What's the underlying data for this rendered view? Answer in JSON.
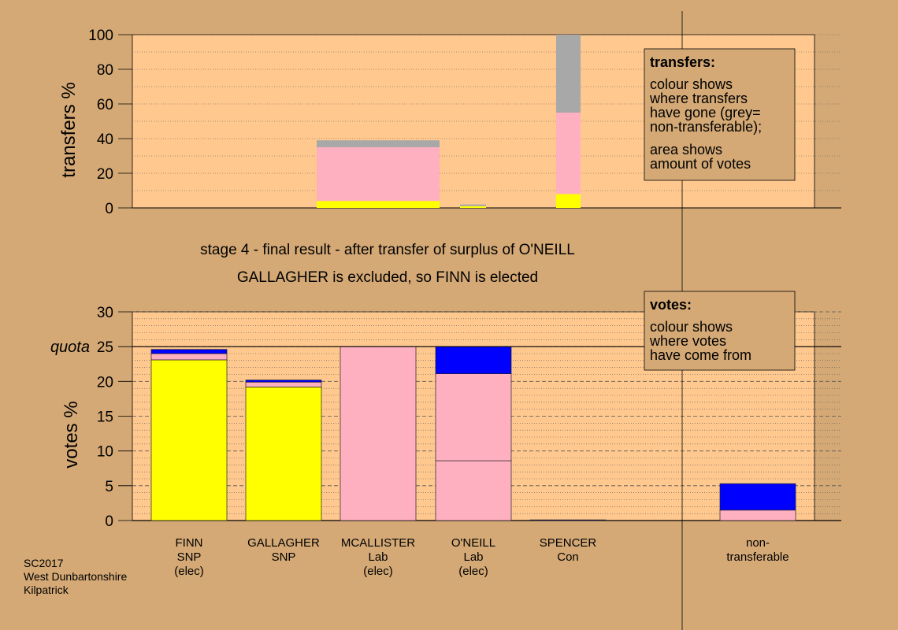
{
  "colors": {
    "background": "#d4a976",
    "plot_area": "#ffc88f",
    "snp": "#ffff00",
    "lab": "#ffb0c0",
    "con": "#0000ff",
    "non_transferable": "#a8a8a8",
    "legend_box": "#d4a976"
  },
  "headings": {
    "stage": "stage 4 - final result - after transfer of surplus of O'NEILL",
    "outcome": "GALLAGHER is excluded, so FINN is elected"
  },
  "transfers_legend": {
    "title": "transfers:",
    "lines": [
      "colour shows",
      "where transfers",
      "have gone (grey=",
      "non-transferable);"
    ],
    "lines2": [
      "area shows",
      "amount of votes"
    ]
  },
  "votes_legend": {
    "title": "votes:",
    "lines": [
      "colour shows",
      "where votes",
      "have come from"
    ]
  },
  "footer": [
    "SC2017",
    "West Dunbartonshire",
    "Kilpatrick"
  ],
  "chart_data": [
    {
      "type": "bar",
      "stacked": true,
      "ylabel": "transfers %",
      "ylim": [
        0,
        100
      ],
      "yticks": [
        0,
        20,
        40,
        60,
        80,
        100
      ],
      "grid": "dotted every 10",
      "legend_position": "top-right",
      "bars": [
        {
          "id": "mcallister",
          "segments": [
            {
              "color": "snp",
              "value": 4
            },
            {
              "color": "lab",
              "value": 31
            },
            {
              "color": "non_transferable",
              "value": 4
            }
          ]
        },
        {
          "id": "oneill",
          "segments": [
            {
              "color": "snp",
              "value": 1
            },
            {
              "color": "non_transferable",
              "value": 1
            }
          ]
        },
        {
          "id": "spencer",
          "segments": [
            {
              "color": "snp",
              "value": 8
            },
            {
              "color": "lab",
              "value": 47
            },
            {
              "color": "non_transferable",
              "value": 45
            }
          ]
        }
      ]
    },
    {
      "type": "bar",
      "stacked": true,
      "ylabel": "votes %",
      "ylim": [
        0,
        30
      ],
      "yticks": [
        0,
        5,
        10,
        15,
        20,
        25,
        30
      ],
      "quota": 25,
      "quota_label": "quota",
      "grid": "dashed every 5, dotted every 1",
      "legend_position": "top-right",
      "categories": [
        {
          "lines": [
            "FINN",
            "SNP",
            "(elec)"
          ],
          "segments": [
            {
              "color": "snp",
              "value": 23.1
            },
            {
              "color": "lab",
              "value": 0.9
            },
            {
              "color": "con",
              "value": 0.6
            }
          ]
        },
        {
          "lines": [
            "GALLAGHER",
            "SNP"
          ],
          "segments": [
            {
              "color": "snp",
              "value": 19.2
            },
            {
              "color": "lab",
              "value": 0.7
            },
            {
              "color": "con",
              "value": 0.3
            }
          ]
        },
        {
          "lines": [
            "MCALLISTER",
            "Lab",
            "(elec)"
          ],
          "segments": [
            {
              "color": "lab",
              "value": 25
            }
          ]
        },
        {
          "lines": [
            "O'NEILL",
            "Lab",
            "(elec)"
          ],
          "segments": [
            {
              "color": "lab",
              "value": 8.6
            },
            {
              "color": "lab",
              "value": 12.5
            },
            {
              "color": "con",
              "value": 3.9
            }
          ]
        },
        {
          "lines": [
            "SPENCER",
            "Con"
          ],
          "segments": [
            {
              "color": "con",
              "value": 0.1
            }
          ]
        },
        {
          "lines": [
            "non-",
            "transferable"
          ],
          "segments": [
            {
              "color": "lab",
              "value": 1.5
            },
            {
              "color": "con",
              "value": 3.8
            }
          ]
        }
      ]
    }
  ]
}
